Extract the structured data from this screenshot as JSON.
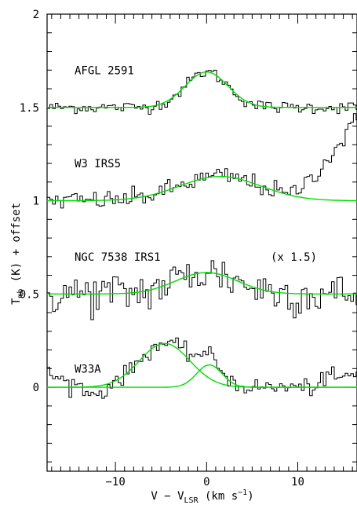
{
  "chart_data": {
    "type": "line",
    "title": "",
    "xlabel": {
      "main": "V − V",
      "sub": "LSR",
      "unit_open": " (km s",
      "sup": "−1",
      "unit_close": ")"
    },
    "ylabel": {
      "main": "T",
      "sub": "mb",
      "rest": " (K) + offset"
    },
    "xlim": [
      -17.5,
      16.5
    ],
    "ylim": [
      -0.45,
      2.0
    ],
    "x_ticks": [
      -10,
      0,
      10
    ],
    "x_tick_labels": [
      "−10",
      "0",
      "10"
    ],
    "y_ticks": [
      0,
      0.5,
      1,
      1.5,
      2
    ],
    "y_tick_labels": [
      "0",
      "0.5",
      "1",
      "1.5",
      "2"
    ],
    "grid": false,
    "colors": {
      "observed": "#000000",
      "fit": "#00dd00"
    },
    "series": [
      {
        "name": "AFGL 2591",
        "offset": 1.5,
        "baseline": 1.5,
        "noise": 0.016,
        "fit": [
          {
            "amp": 0.19,
            "center": 0.0,
            "fwhm": 5.5
          }
        ],
        "extra": null
      },
      {
        "name": "W3 IRS5",
        "offset": 1.0,
        "baseline": 1.0,
        "noise": 0.026,
        "fit": [
          {
            "amp": 0.13,
            "center": 1.5,
            "fwhm": 10.5
          }
        ],
        "extra": {
          "type": "rising_wing",
          "start": 9.0,
          "rate": 0.045
        }
      },
      {
        "name": "NGC 7538 IRS1",
        "offset": 0.5,
        "baseline": 0.5,
        "noise": 0.06,
        "fit": [
          {
            "amp": 0.115,
            "center": 0.0,
            "fwhm": 8.0
          }
        ],
        "extra": null,
        "annotation": "(x 1.5)"
      },
      {
        "name": "W33A",
        "offset": 0.0,
        "baseline": 0.0,
        "noise": 0.022,
        "fit": [
          {
            "amp": 0.235,
            "center": -4.6,
            "fwhm": 6.5
          },
          {
            "amp": 0.12,
            "center": 0.3,
            "fwhm": 3.3
          }
        ],
        "extra": {
          "type": "edge_wings"
        }
      }
    ]
  }
}
